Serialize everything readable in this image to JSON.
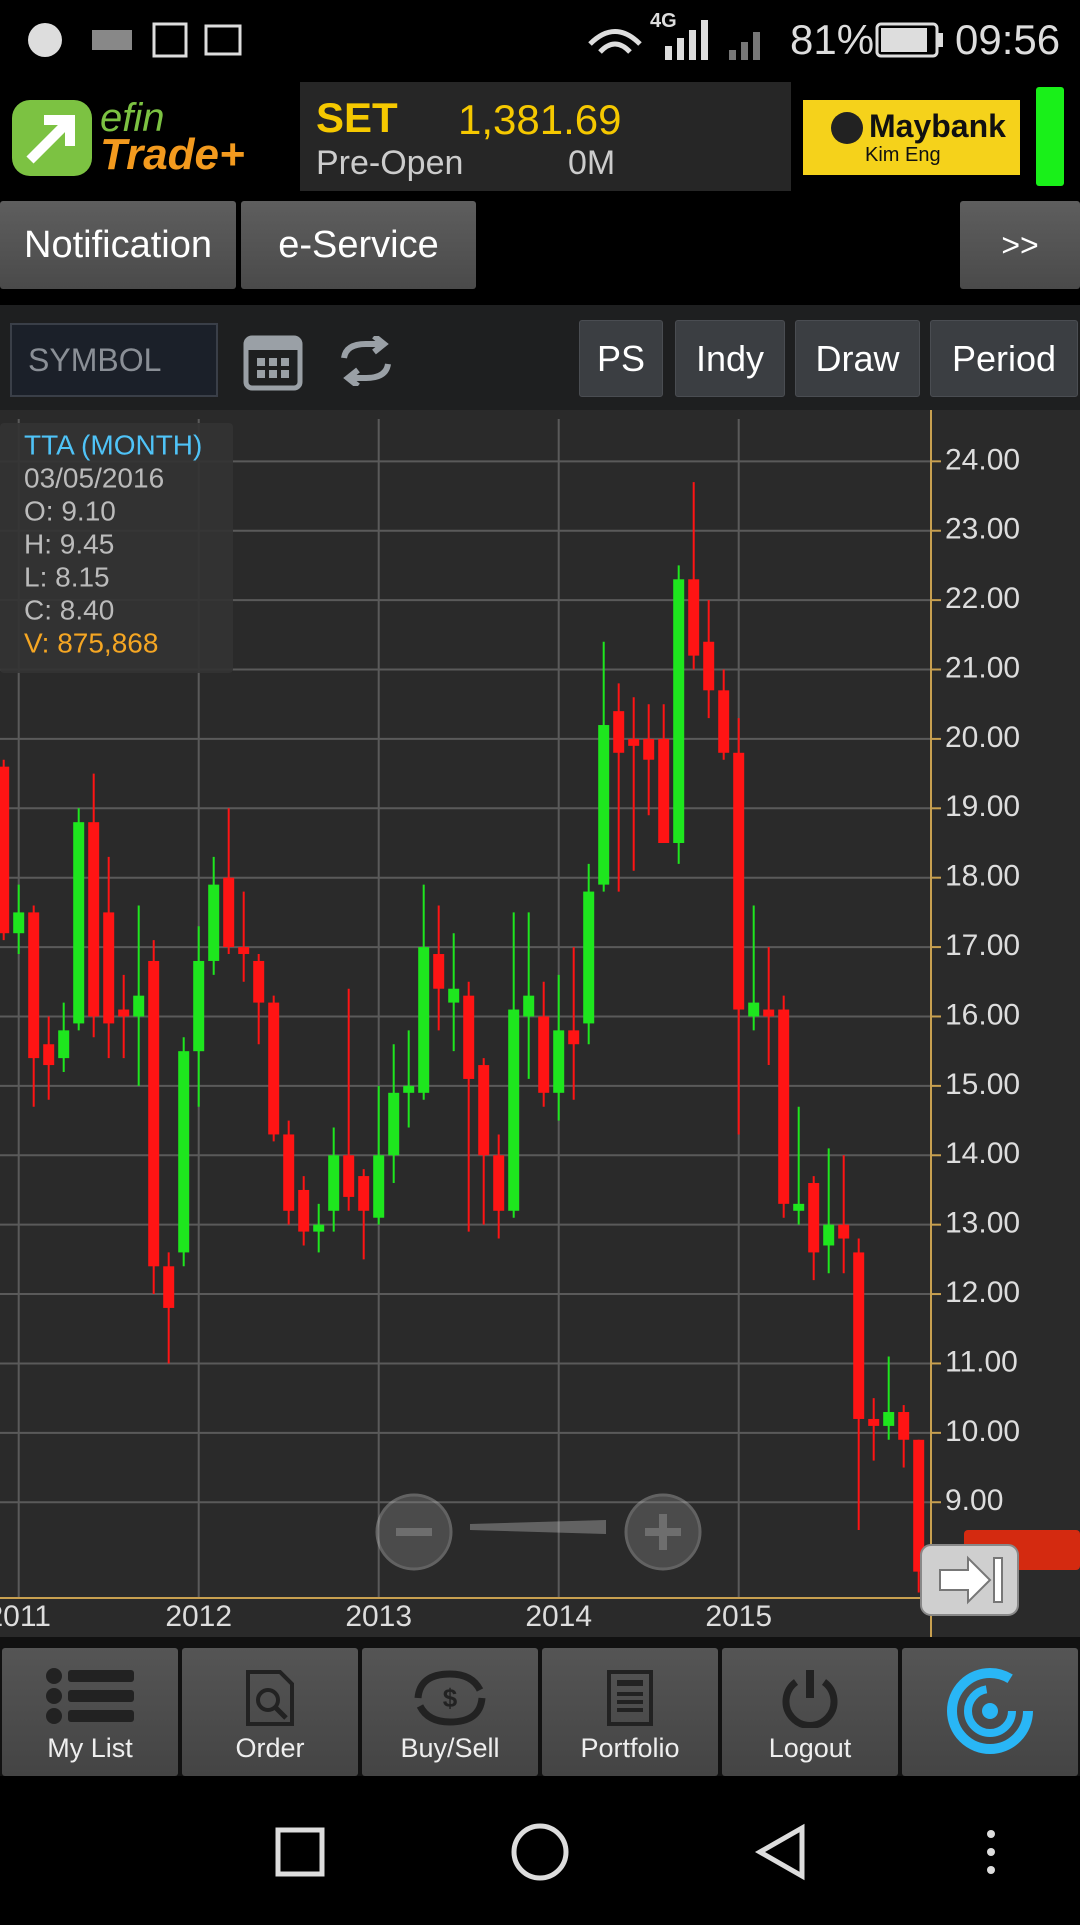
{
  "status_bar": {
    "network": "4G",
    "battery": "81%",
    "time": "09:56"
  },
  "header": {
    "logo_top": "efin",
    "logo_bottom": "Trade+",
    "index_name": "SET",
    "index_value": "1,381.69",
    "session": "Pre-Open",
    "volume": "0M",
    "broker": "Maybank",
    "broker_sub": "Kim Eng"
  },
  "tabs": [
    "Notification",
    "e-Service"
  ],
  "more": ">>",
  "toolbar": {
    "symbol_placeholder": "SYMBOL",
    "buttons": [
      "PS",
      "Indy",
      "Draw",
      "Period"
    ]
  },
  "info": {
    "title": "TTA (MONTH)",
    "date": "03/05/2016",
    "open": "O: 9.10",
    "high": "H: 9.45",
    "low": "L: 8.15",
    "close": "C: 8.40",
    "volume": "V: 875,868"
  },
  "chart_data": {
    "type": "candlestick",
    "categories": [
      null,
      "2011",
      null,
      null,
      null,
      null,
      null,
      null,
      null,
      null,
      null,
      null,
      null,
      "2012",
      null,
      null,
      null,
      null,
      null,
      null,
      null,
      null,
      null,
      null,
      null,
      "2013",
      null,
      null,
      null,
      null,
      null,
      null,
      null,
      null,
      null,
      null,
      null,
      "2014",
      null,
      null,
      null,
      null,
      null,
      null,
      null,
      null,
      null,
      null,
      null,
      "2015",
      null,
      null,
      null,
      null,
      null,
      null,
      null,
      null,
      null,
      null,
      null,
      null
    ],
    "open": [
      19.6,
      17.2,
      17.5,
      15.6,
      15.4,
      15.9,
      18.8,
      17.5,
      16.1,
      16.0,
      16.8,
      12.4,
      12.6,
      15.5,
      16.8,
      18.0,
      17.0,
      16.8,
      16.2,
      14.3,
      13.5,
      12.9,
      13.2,
      14.0,
      13.7,
      13.1,
      14.0,
      14.9,
      14.9,
      16.9,
      16.2,
      16.3,
      15.3,
      14.0,
      13.2,
      16.0,
      16.0,
      14.9,
      15.8,
      15.9,
      17.9,
      20.4,
      20.0,
      20.0,
      20.0,
      18.5,
      22.3,
      21.4,
      20.7,
      19.8,
      16.0,
      16.1,
      16.1,
      13.2,
      13.6,
      12.7,
      13.0,
      12.6,
      10.2,
      10.1,
      10.3,
      9.9
    ],
    "high": [
      19.7,
      17.9,
      17.6,
      16.0,
      16.2,
      19.0,
      19.5,
      18.3,
      16.6,
      17.6,
      17.1,
      12.6,
      15.7,
      17.3,
      18.3,
      19.0,
      17.8,
      16.9,
      16.3,
      14.5,
      13.7,
      13.3,
      14.4,
      16.4,
      13.8,
      15.0,
      15.6,
      15.8,
      17.9,
      17.6,
      17.2,
      16.5,
      15.4,
      14.3,
      17.5,
      17.5,
      16.5,
      16.6,
      17.0,
      18.2,
      21.4,
      20.8,
      20.6,
      20.5,
      20.5,
      22.5,
      23.7,
      22.0,
      21.0,
      20.3,
      17.6,
      17.0,
      16.3,
      14.7,
      13.7,
      14.1,
      14.0,
      12.8,
      10.5,
      11.1,
      10.4,
      9.9
    ],
    "low": [
      17.1,
      16.9,
      14.7,
      14.8,
      15.2,
      15.8,
      15.7,
      15.4,
      15.4,
      15.0,
      12.0,
      11.0,
      12.4,
      14.7,
      16.6,
      16.9,
      16.5,
      15.6,
      14.2,
      13.0,
      12.7,
      12.6,
      12.9,
      13.2,
      12.5,
      13.0,
      13.6,
      14.4,
      14.8,
      15.8,
      15.5,
      12.9,
      13.0,
      12.8,
      13.1,
      15.1,
      14.7,
      14.5,
      14.8,
      15.6,
      17.8,
      17.8,
      18.1,
      18.9,
      18.5,
      18.2,
      21.0,
      20.3,
      19.7,
      14.3,
      15.8,
      15.3,
      13.1,
      13.0,
      12.2,
      12.3,
      12.3,
      8.6,
      9.6,
      9.9,
      9.5,
      7.7
    ],
    "close": [
      17.2,
      17.5,
      15.4,
      15.3,
      15.8,
      18.8,
      16.0,
      15.9,
      16.0,
      16.3,
      12.4,
      11.8,
      15.5,
      16.8,
      17.9,
      17.0,
      16.9,
      16.2,
      14.3,
      13.2,
      12.9,
      13.0,
      14.0,
      13.4,
      13.2,
      14.0,
      14.9,
      15.0,
      17.0,
      16.4,
      16.4,
      15.1,
      14.0,
      13.2,
      16.1,
      16.3,
      14.9,
      15.8,
      15.6,
      17.8,
      20.2,
      19.8,
      19.9,
      19.7,
      18.5,
      22.3,
      21.2,
      20.7,
      19.8,
      16.1,
      16.2,
      16.0,
      13.3,
      13.3,
      12.6,
      13.0,
      12.8,
      10.2,
      10.1,
      10.3,
      9.9,
      8.0
    ],
    "up_color": "#1ee61e",
    "down_color": "#ff1414",
    "axis_color": "#c8a050",
    "ylim": [
      7.62,
      24.61
    ],
    "yticks": [
      {
        "value": 9,
        "label": "9.00"
      },
      {
        "value": 10,
        "label": "10.00"
      },
      {
        "value": 11,
        "label": "11.00"
      },
      {
        "value": 12,
        "label": "12.00"
      },
      {
        "value": 13,
        "label": "13.00"
      },
      {
        "value": 14,
        "label": "14.00"
      },
      {
        "value": 15,
        "label": "15.00"
      },
      {
        "value": 16,
        "label": "16.00"
      },
      {
        "value": 17,
        "label": "17.00"
      },
      {
        "value": 18,
        "label": "18.00"
      },
      {
        "value": 19,
        "label": "19.00"
      },
      {
        "value": 20,
        "label": "20.00"
      },
      {
        "value": 21,
        "label": "21.00"
      },
      {
        "value": 22,
        "label": "22.00"
      },
      {
        "value": 23,
        "label": "23.00"
      },
      {
        "value": 24,
        "label": "24.00"
      }
    ],
    "grid": true
  },
  "bottom_nav": [
    "My List",
    "Order",
    "Buy/Sell",
    "Portfolio",
    "Logout"
  ]
}
